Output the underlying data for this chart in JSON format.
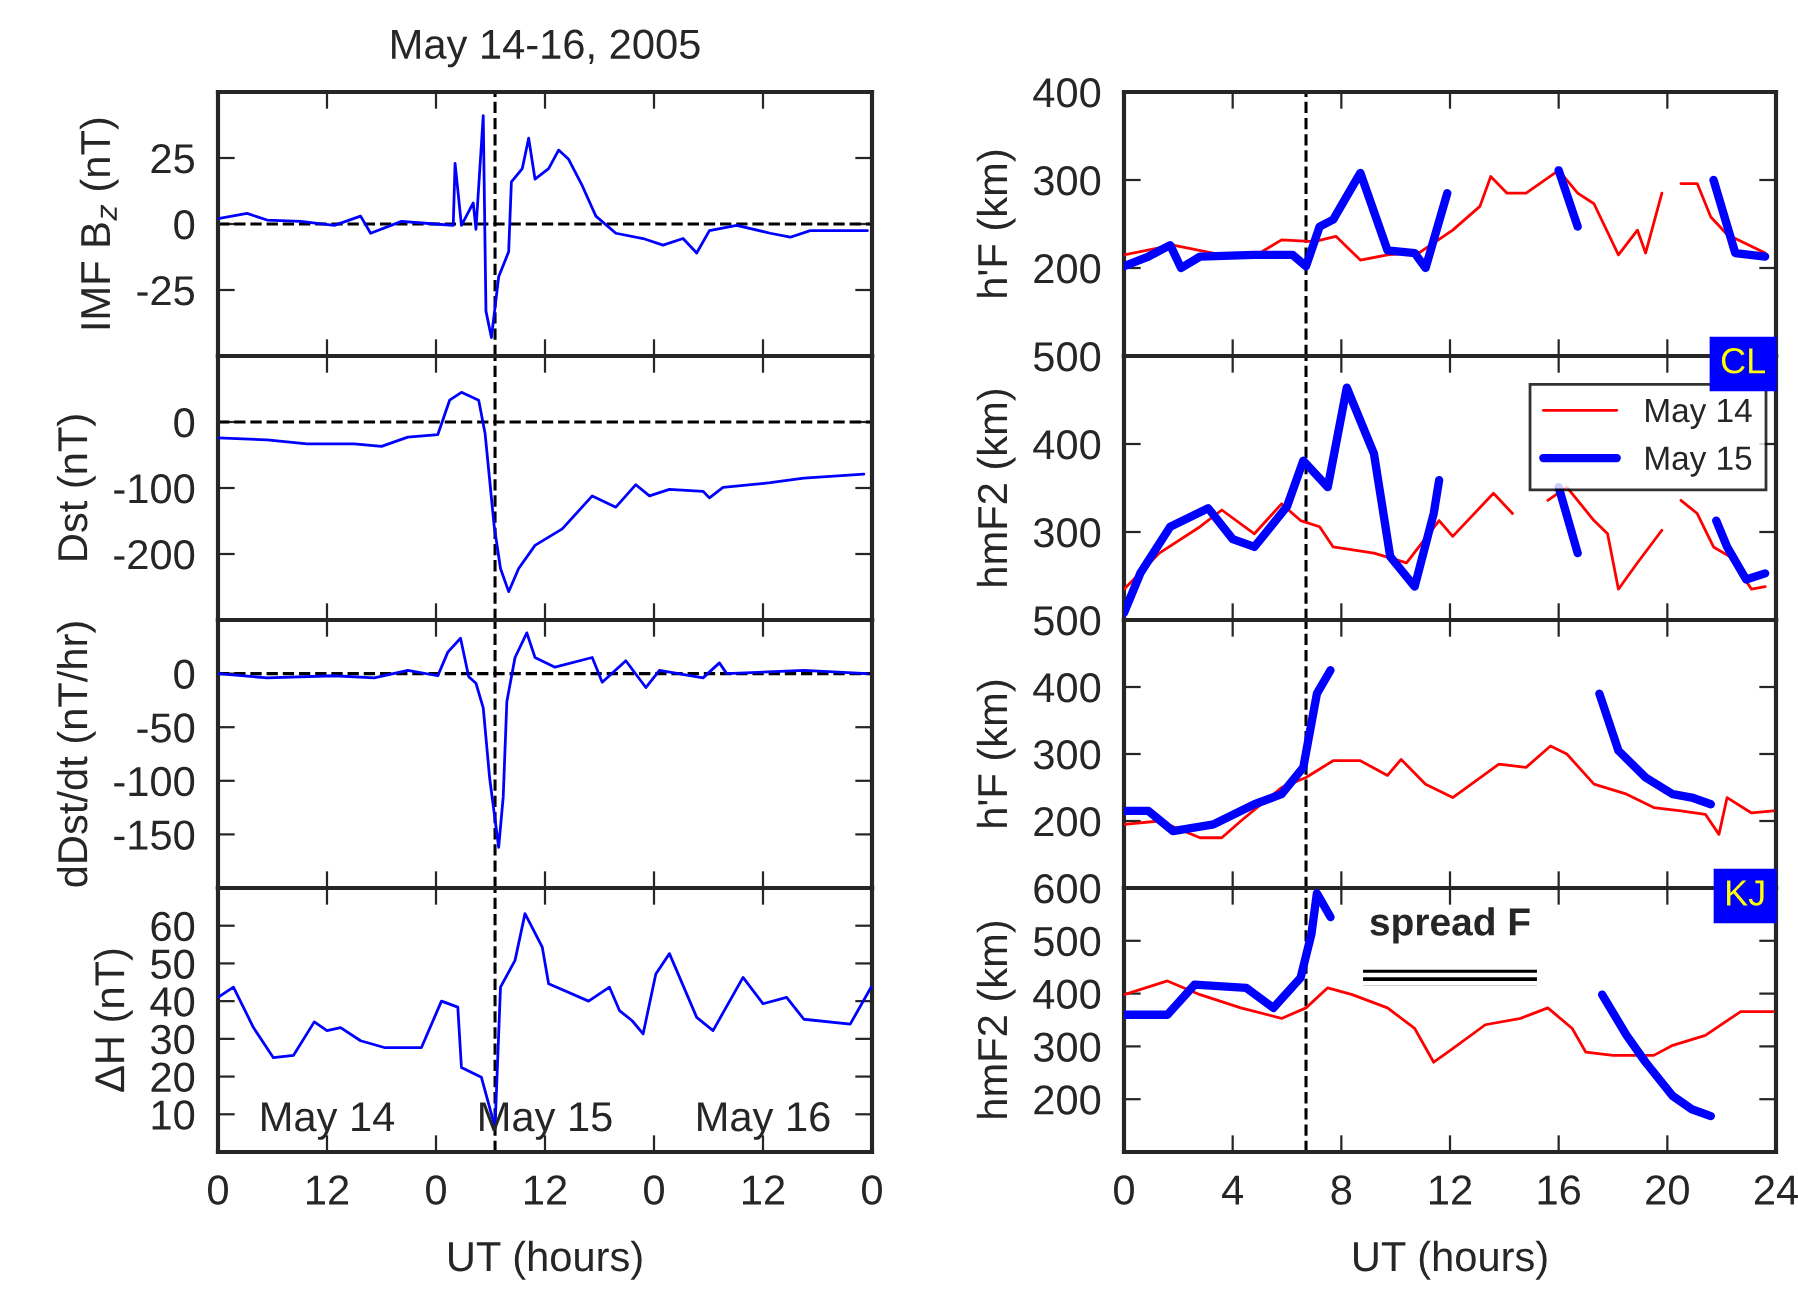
{
  "chart_data": [
    {
      "type": "line",
      "title": "May 14-16, 2005",
      "ylabel": "IMF B$_{z}$ (nT)",
      "xlim": [
        "2005-05-14T00:00",
        "2005-05-17T00:00"
      ],
      "xticks": [
        {
          "value": "2005-05-14T00:00",
          "label": null
        },
        {
          "value": "2005-05-14T12:00",
          "label": null
        },
        {
          "value": "2005-05-15T00:00",
          "label": null
        },
        {
          "value": "2005-05-15T12:00",
          "label": null
        },
        {
          "value": "2005-05-16T00:00",
          "label": null
        },
        {
          "value": "2005-05-16T12:00",
          "label": null
        },
        {
          "value": "2005-05-17T00:00",
          "label": null
        }
      ],
      "ylim": [
        -50,
        50
      ],
      "yticks": [
        -25,
        0,
        25
      ],
      "tick_labels": "y",
      "line_style": "solid",
      "ref_lines": [
        {
          "axis": "x",
          "value": "2005-05-15T06:30",
          "line_style": "dashed",
          "color": "#000000"
        },
        {
          "axis": "y",
          "value": 0,
          "line_style": "dashed",
          "color": "#000000"
        }
      ],
      "series": [
        {
          "color": "#0000ff",
          "x": [
            "2005-05-14T00:00",
            "2005-05-14T03:12",
            "2005-05-14T05:24",
            "2005-05-14T09:06",
            "2005-05-14T12:48",
            "2005-05-14T15:42",
            "2005-05-14T16:48",
            "2005-05-14T20:12",
            "2005-05-14T23:54",
            "2005-05-15T01:54",
            "2005-05-15T02:06",
            "2005-05-15T02:48",
            "2005-05-15T04:06",
            "2005-05-15T04:24",
            "2005-05-15T05:12",
            "2005-05-15T05:30",
            "2005-05-15T06:06",
            "2005-05-15T06:54",
            "2005-05-15T08:00",
            "2005-05-15T08:18",
            "2005-05-15T09:30",
            "2005-05-15T10:12",
            "2005-05-15T10:54",
            "2005-05-15T12:24",
            "2005-05-15T13:30",
            "2005-05-15T14:36",
            "2005-05-15T16:06",
            "2005-05-15T17:36",
            "2005-05-15T19:48",
            "2005-05-15T22:48",
            "2005-05-16T01:00",
            "2005-05-16T03:12",
            "2005-05-16T04:42",
            "2005-05-16T06:06",
            "2005-05-16T09:06",
            "2005-05-16T12:48",
            "2005-05-16T15:00",
            "2005-05-16T17:12",
            "2005-05-16T23:30"
          ],
          "values": [
            2,
            4,
            1.5,
            1,
            -0.5,
            3,
            -3.5,
            1,
            0,
            -0.5,
            23,
            -0.5,
            8,
            -2,
            41,
            -33,
            -43,
            -20,
            -10.5,
            16,
            21,
            32.5,
            17,
            21,
            28,
            24.5,
            14.5,
            3,
            -3.5,
            -5.5,
            -8,
            -5.5,
            -11,
            -2.5,
            -0.5,
            -3.5,
            -5,
            -2.5,
            -2.5
          ]
        }
      ]
    },
    {
      "type": "line",
      "ylabel": "Dst (nT)",
      "xlim": [
        "2005-05-14T00:00",
        "2005-05-17T00:00"
      ],
      "xticks": [
        {
          "value": "2005-05-14T00:00",
          "label": null
        },
        {
          "value": "2005-05-14T12:00",
          "label": null
        },
        {
          "value": "2005-05-15T00:00",
          "label": null
        },
        {
          "value": "2005-05-15T12:00",
          "label": null
        },
        {
          "value": "2005-05-16T00:00",
          "label": null
        },
        {
          "value": "2005-05-16T12:00",
          "label": null
        },
        {
          "value": "2005-05-17T00:00",
          "label": null
        }
      ],
      "ylim": [
        -300,
        100
      ],
      "yticks": [
        -200,
        -100,
        0
      ],
      "tick_labels": "y",
      "line_style": "solid",
      "ref_lines": [
        {
          "axis": "x",
          "value": "2005-05-15T06:30",
          "line_style": "dashed",
          "color": "#000000"
        },
        {
          "axis": "y",
          "value": 0,
          "line_style": "dashed",
          "color": "#000000"
        }
      ],
      "series": [
        {
          "color": "#0000ff",
          "x": [
            "2005-05-14T00:00",
            "2005-05-14T05:24",
            "2005-05-14T09:48",
            "2005-05-14T15:00",
            "2005-05-14T18:00",
            "2005-05-14T20:54",
            "2005-05-15T00:12",
            "2005-05-15T01:30",
            "2005-05-15T02:48",
            "2005-05-15T04:42",
            "2005-05-15T05:24",
            "2005-05-15T06:24",
            "2005-05-15T07:06",
            "2005-05-15T08:00",
            "2005-05-15T09:06",
            "2005-05-15T10:54",
            "2005-05-15T13:54",
            "2005-05-15T17:12",
            "2005-05-15T19:48",
            "2005-05-15T22:00",
            "2005-05-15T23:30",
            "2005-05-16T01:42",
            "2005-05-16T05:24",
            "2005-05-16T06:06",
            "2005-05-16T07:36",
            "2005-05-16T12:48",
            "2005-05-16T16:30",
            "2005-05-16T23:06"
          ],
          "values": [
            -24,
            -27,
            -33,
            -33,
            -37,
            -23,
            -19,
            33,
            45,
            33,
            -17,
            -157,
            -222,
            -257,
            -222,
            -187,
            -162,
            -112,
            -129,
            -95,
            -112,
            -102,
            -105,
            -115,
            -99,
            -92,
            -85,
            -79
          ]
        }
      ]
    },
    {
      "type": "line",
      "ylabel": "dDst/dt (nT/hr)",
      "xlim": [
        "2005-05-14T00:00",
        "2005-05-17T00:00"
      ],
      "xticks": [
        {
          "value": "2005-05-14T00:00",
          "label": null
        },
        {
          "value": "2005-05-14T12:00",
          "label": null
        },
        {
          "value": "2005-05-15T00:00",
          "label": null
        },
        {
          "value": "2005-05-15T12:00",
          "label": null
        },
        {
          "value": "2005-05-16T00:00",
          "label": null
        },
        {
          "value": "2005-05-16T12:00",
          "label": null
        },
        {
          "value": "2005-05-17T00:00",
          "label": null
        }
      ],
      "ylim": [
        -200,
        50
      ],
      "yticks": [
        -150,
        -100,
        -50,
        0
      ],
      "tick_labels": "y",
      "line_style": "solid",
      "ref_lines": [
        {
          "axis": "x",
          "value": "2005-05-15T06:30",
          "line_style": "dashed",
          "color": "#000000"
        },
        {
          "axis": "y",
          "value": 0,
          "line_style": "dashed",
          "color": "#000000"
        }
      ],
      "series": [
        {
          "color": "#0000ff",
          "x": [
            "2005-05-14T00:00",
            "2005-05-14T05:24",
            "2005-05-14T12:48",
            "2005-05-14T17:12",
            "2005-05-14T20:54",
            "2005-05-15T00:12",
            "2005-05-15T01:18",
            "2005-05-15T02:42",
            "2005-05-15T03:36",
            "2005-05-15T04:24",
            "2005-05-15T05:12",
            "2005-05-15T05:54",
            "2005-05-15T06:54",
            "2005-05-15T07:24",
            "2005-05-15T07:48",
            "2005-05-15T08:42",
            "2005-05-15T10:00",
            "2005-05-15T10:54",
            "2005-05-15T13:06",
            "2005-05-15T17:12",
            "2005-05-15T18:18",
            "2005-05-15T20:54",
            "2005-05-15T23:06",
            "2005-05-16T00:36",
            "2005-05-16T05:24",
            "2005-05-16T07:12",
            "2005-05-16T08:00",
            "2005-05-16T16:30",
            "2005-05-16T23:30"
          ],
          "values": [
            0,
            -4,
            -2,
            -4,
            3,
            -2,
            20,
            33,
            -3,
            -9,
            -32,
            -97,
            -162,
            -115,
            -26,
            15,
            38,
            15,
            6,
            15,
            -8,
            12,
            -13,
            3,
            -4,
            10,
            0,
            3,
            0
          ]
        }
      ]
    },
    {
      "type": "line",
      "ylabel": "ΔH (nT)",
      "xlabel": "UT (hours)",
      "xlim": [
        "2005-05-14T00:00",
        "2005-05-17T00:00"
      ],
      "xticks": [
        {
          "value": "2005-05-14T00:00",
          "label": "0"
        },
        {
          "value": "2005-05-14T12:00",
          "label": "12"
        },
        {
          "value": "2005-05-15T00:00",
          "label": "0"
        },
        {
          "value": "2005-05-15T12:00",
          "label": "12"
        },
        {
          "value": "2005-05-16T00:00",
          "label": "0"
        },
        {
          "value": "2005-05-16T12:00",
          "label": "12"
        },
        {
          "value": "2005-05-17T00:00",
          "label": "0"
        }
      ],
      "ylim": [
        0,
        70
      ],
      "yticks": [
        10,
        20,
        30,
        40,
        50,
        60
      ],
      "line_style": "solid",
      "annotations": [
        "May 14",
        "May 15",
        "May 16"
      ],
      "ref_lines": [
        {
          "axis": "x",
          "value": "2005-05-15T06:30",
          "line_style": "dashed",
          "color": "#000000"
        }
      ],
      "series": [
        {
          "color": "#0000ff",
          "x": [
            "2005-05-14T00:00",
            "2005-05-14T01:42",
            "2005-05-14T03:54",
            "2005-05-14T06:06",
            "2005-05-14T08:18",
            "2005-05-14T10:36",
            "2005-05-14T12:00",
            "2005-05-14T13:30",
            "2005-05-14T15:42",
            "2005-05-14T18:18",
            "2005-05-14T22:24",
            "2005-05-15T00:36",
            "2005-05-15T02:24",
            "2005-05-15T02:48",
            "2005-05-15T05:00",
            "2005-05-15T06:30",
            "2005-05-15T07:06",
            "2005-05-15T08:42",
            "2005-05-15T09:48",
            "2005-05-15T11:42",
            "2005-05-15T12:24",
            "2005-05-15T16:48",
            "2005-05-15T19:06",
            "2005-05-15T20:12",
            "2005-05-15T21:36",
            "2005-05-15T22:48",
            "2005-05-16T00:12",
            "2005-05-16T01:42",
            "2005-05-16T04:42",
            "2005-05-16T06:30",
            "2005-05-16T09:48",
            "2005-05-16T12:00",
            "2005-05-16T14:36",
            "2005-05-16T16:30",
            "2005-05-16T21:36",
            "2005-05-16T23:54"
          ],
          "values": [
            41,
            43.7,
            33,
            25,
            25.6,
            34.5,
            32.2,
            33,
            29.5,
            27.7,
            27.7,
            40,
            38.4,
            22.4,
            19.8,
            6.5,
            43.7,
            50.8,
            63.2,
            54.3,
            44.6,
            40,
            43.7,
            37.5,
            34.8,
            31.3,
            47.2,
            52.6,
            35.7,
            32.2,
            46.3,
            39.3,
            41,
            35.2,
            33.9,
            43.7
          ]
        }
      ]
    },
    {
      "type": "line",
      "ylabel": "h'F (km)",
      "xlim": [
        0,
        24
      ],
      "xticks": [
        {
          "value": 0,
          "label": null
        },
        {
          "value": 4,
          "label": null
        },
        {
          "value": 8,
          "label": null
        },
        {
          "value": 12,
          "label": null
        },
        {
          "value": 16,
          "label": null
        },
        {
          "value": 20,
          "label": null
        },
        {
          "value": 24,
          "label": null
        }
      ],
      "ylim": [
        100,
        400
      ],
      "yticks": [
        200,
        300,
        400
      ],
      "tick_labels": "y",
      "line_style": "solid",
      "annotations": [
        "CL"
      ],
      "ref_lines": [
        {
          "axis": "x",
          "value": 6.7,
          "line_style": "dashed",
          "color": "#000000"
        }
      ],
      "series": [
        {
          "color": "#ff0000",
          "x": [
            0,
            1.8,
            3.6,
            5,
            5.8,
            7,
            7.8,
            8.7,
            9.7,
            10.9,
            12.1,
            13.1,
            13.5,
            14.1,
            14.8,
            16,
            16.7,
            17.3,
            18.2,
            18.9,
            19.2,
            19.8,
            20.2,
            20.5,
            21.1,
            21.6,
            22.2,
            23.6
          ],
          "values": [
            215,
            226,
            215,
            217,
            232,
            230,
            236,
            209,
            215,
            218,
            243,
            270,
            304,
            285,
            285,
            311,
            285,
            273,
            215,
            243,
            217,
            285,
            null,
            296,
            296,
            258,
            238,
            217
          ]
        },
        {
          "color": "#0000ff",
          "x": [
            0,
            0.9,
            1.7,
            2.1,
            2.8,
            4.8,
            6.2,
            6.7,
            7.2,
            7.7,
            8.7,
            9.7,
            10.7,
            11.1,
            11.9,
            14,
            16,
            16.7,
            19,
            21.7,
            22.5,
            23.6
          ],
          "values": [
            202,
            213,
            226,
            200,
            213,
            215,
            215,
            202,
            247,
            255,
            308,
            220,
            217,
            200,
            285,
            null,
            311,
            247,
            null,
            300,
            217,
            213
          ]
        }
      ]
    },
    {
      "type": "line",
      "ylabel": "hmF2 (km)",
      "xlim": [
        0,
        24
      ],
      "xticks": [
        {
          "value": 0,
          "label": null
        },
        {
          "value": 4,
          "label": null
        },
        {
          "value": 8,
          "label": null
        },
        {
          "value": 12,
          "label": null
        },
        {
          "value": 16,
          "label": null
        },
        {
          "value": 20,
          "label": null
        },
        {
          "value": 24,
          "label": null
        }
      ],
      "ylim": [
        200,
        500
      ],
      "yticks": [
        300,
        400,
        500
      ],
      "tick_labels": "y",
      "line_style": "solid",
      "legend": "top right",
      "ref_lines": [
        {
          "axis": "x",
          "value": 6.7,
          "line_style": "dashed",
          "color": "#000000"
        }
      ],
      "series": [
        {
          "name": "May 14",
          "color": "#ff0000",
          "x": [
            0,
            1.3,
            2.8,
            3.6,
            4.8,
            5.8,
            6.5,
            7.2,
            7.7,
            9.2,
            10.4,
            11.6,
            12.1,
            13.6,
            14.3,
            15.1,
            15.6,
            16.3,
            17.3,
            17.8,
            18.2,
            18.9,
            19.8,
            20.2,
            20.5,
            21.1,
            21.7,
            22.3,
            23.1,
            23.6
          ],
          "values": [
            235,
            276,
            306,
            325,
            298,
            332,
            313,
            306,
            283,
            276,
            265,
            313,
            295,
            344,
            321,
            null,
            336,
            351,
            313,
            298,
            235,
            265,
            302,
            null,
            336,
            321,
            283,
            272,
            235,
            238
          ]
        },
        {
          "name": "May 15",
          "color": "#0000ff",
          "x": [
            0,
            0.6,
            1.7,
            3.1,
            4,
            4.8,
            6,
            6.6,
            7.5,
            8.2,
            9.2,
            9.8,
            10.7,
            11.4,
            11.6,
            14,
            16,
            16.7,
            19,
            21.8,
            22.2,
            22.9,
            23.6
          ],
          "values": [
            208,
            253,
            306,
            327,
            292,
            283,
            329,
            381,
            351,
            464,
            389,
            272,
            238,
            321,
            359,
            null,
            351,
            276,
            null,
            313,
            283,
            246,
            253
          ]
        }
      ]
    },
    {
      "type": "line",
      "ylabel": "h'F (km)",
      "xlim": [
        0,
        24
      ],
      "xticks": [
        {
          "value": 0,
          "label": null
        },
        {
          "value": 4,
          "label": null
        },
        {
          "value": 8,
          "label": null
        },
        {
          "value": 12,
          "label": null
        },
        {
          "value": 16,
          "label": null
        },
        {
          "value": 20,
          "label": null
        },
        {
          "value": 24,
          "label": null
        }
      ],
      "ylim": [
        100,
        500
      ],
      "yticks": [
        200,
        300,
        400,
        500
      ],
      "tick_labels": "y",
      "line_style": "solid",
      "annotations": [
        "KJ"
      ],
      "ref_lines": [
        {
          "axis": "x",
          "value": 6.7,
          "line_style": "dashed",
          "color": "#000000"
        }
      ],
      "series": [
        {
          "color": "#ff0000",
          "x": [
            0,
            1.3,
            2.8,
            3.6,
            4.3,
            5.8,
            6.7,
            7.7,
            8.7,
            9.7,
            10.2,
            11.1,
            12.1,
            13.8,
            14.8,
            15.7,
            16.3,
            17.3,
            18.5,
            19.5,
            20.5,
            21.4,
            21.9,
            22.2,
            23.1,
            23.9
          ],
          "values": [
            195,
            200,
            175,
            175,
            200,
            250,
            265,
            290,
            290,
            268,
            292,
            255,
            235,
            285,
            280,
            312,
            300,
            255,
            240,
            220,
            215,
            210,
            180,
            235,
            212,
            215
          ]
        },
        {
          "color": "#0000ff",
          "x": [
            0,
            0.9,
            1.8,
            3.3,
            4.8,
            5.8,
            6.6,
            7.1,
            7.6,
            12,
            17.5,
            18.2,
            19.2,
            20.2,
            20.9,
            21.6
          ],
          "values": [
            215,
            215,
            185,
            195,
            225,
            240,
            280,
            390,
            425,
            null,
            390,
            305,
            265,
            240,
            235,
            225
          ]
        }
      ]
    },
    {
      "type": "line",
      "ylabel": "hmF2 (km)",
      "xlabel": "UT (hours)",
      "xlim": [
        0,
        24
      ],
      "xticks": [
        0,
        4,
        8,
        12,
        16,
        20,
        24
      ],
      "ylim": [
        100,
        600
      ],
      "yticks": [
        200,
        300,
        400,
        500,
        600
      ],
      "line_style": "solid",
      "bands": [
        {
          "axis": "x",
          "from": 8.8,
          "to": 15.2,
          "label": "spread F",
          "color": "#000000"
        }
      ],
      "ref_lines": [
        {
          "axis": "x",
          "value": 6.7,
          "line_style": "dashed",
          "color": "#000000"
        }
      ],
      "series": [
        {
          "color": "#ff0000",
          "x": [
            0,
            1.6,
            2.8,
            4.3,
            5.8,
            6.7,
            7.5,
            8.4,
            9.7,
            10.7,
            11.4,
            12.1,
            13.3,
            14.6,
            15.6,
            16.5,
            17,
            18,
            19.5,
            20.2,
            21.4,
            22.7,
            23.9
          ],
          "values": [
            398,
            424,
            398,
            373,
            353,
            373,
            411,
            398,
            373,
            334,
            270,
            296,
            341,
            353,
            373,
            334,
            289,
            283,
            283,
            302,
            321,
            366,
            366
          ]
        },
        {
          "color": "#0000ff",
          "x": [
            0,
            1.6,
            2.6,
            4.5,
            5.5,
            6.5,
            6.9,
            7.1,
            7.6,
            12,
            17.6,
            18.5,
            19.2,
            20.2,
            20.9,
            21.6
          ],
          "values": [
            360,
            360,
            417,
            411,
            373,
            430,
            513,
            590,
            545,
            null,
            398,
            321,
            270,
            206,
            181,
            168
          ]
        }
      ]
    }
  ]
}
